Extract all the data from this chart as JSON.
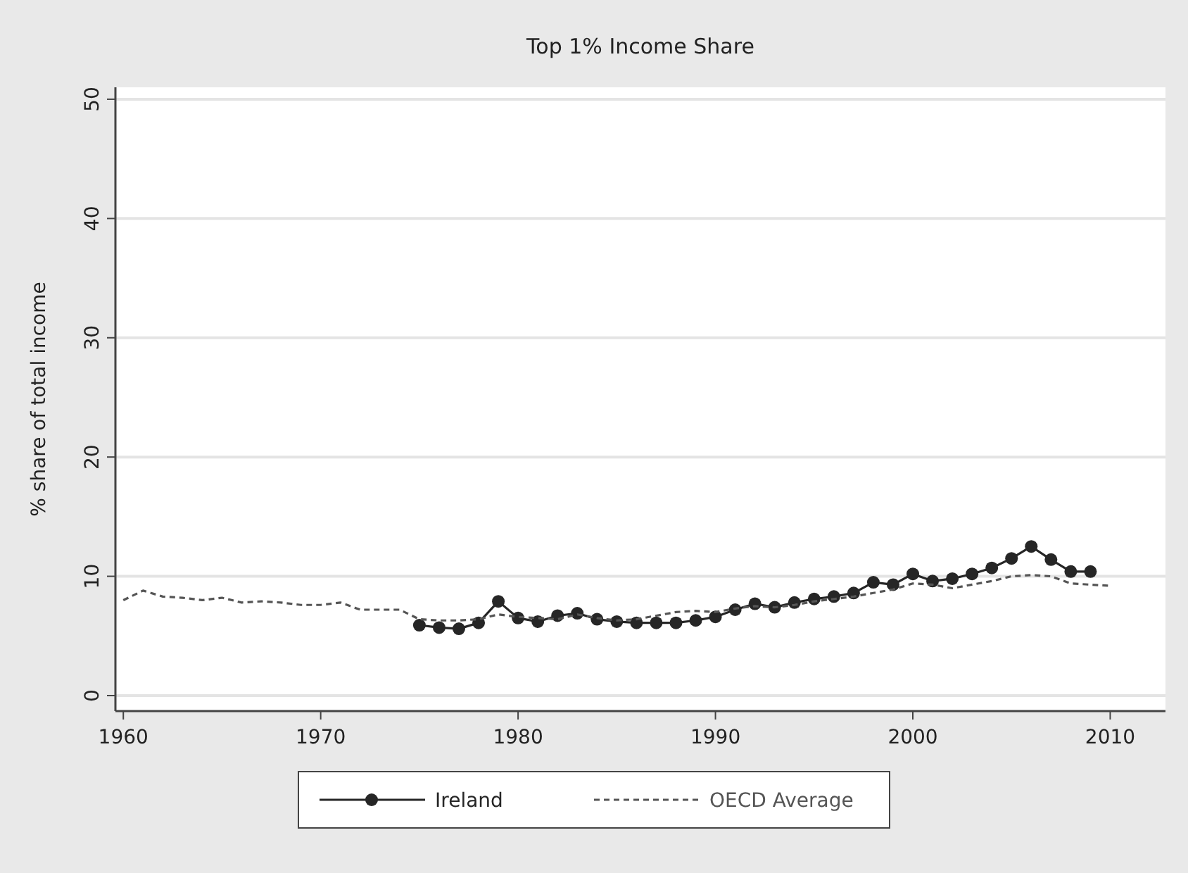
{
  "chart_data": {
    "type": "line",
    "title": "Top 1% Income Share",
    "ylabel": "% share of total income",
    "xlim": [
      1959.6,
      2012.8
    ],
    "xticks": [
      1960,
      1970,
      1980,
      1990,
      2000,
      2010
    ],
    "ylim": [
      -1.3,
      51
    ],
    "yticks": [
      0,
      10,
      20,
      30,
      40,
      50
    ],
    "grid": "y",
    "legend": "bottom",
    "series": [
      {
        "name": "Ireland",
        "color": "#262626",
        "marker": "circle",
        "line_style": "solid",
        "x": [
          1975,
          1976,
          1977,
          1978,
          1979,
          1980,
          1981,
          1982,
          1983,
          1984,
          1985,
          1986,
          1987,
          1988,
          1989,
          1990,
          1991,
          1992,
          1993,
          1994,
          1995,
          1996,
          1997,
          1998,
          1999,
          2000,
          2001,
          2002,
          2003,
          2004,
          2005,
          2006,
          2007,
          2008,
          2009
        ],
        "values": [
          5.9,
          5.7,
          5.6,
          6.1,
          7.9,
          6.5,
          6.2,
          6.7,
          6.9,
          6.4,
          6.2,
          6.1,
          6.1,
          6.1,
          6.3,
          6.6,
          7.2,
          7.7,
          7.4,
          7.8,
          8.1,
          8.3,
          8.6,
          9.5,
          9.3,
          10.2,
          9.6,
          9.8,
          10.2,
          10.7,
          11.5,
          12.5,
          11.4,
          10.4,
          10.4
        ]
      },
      {
        "name": "OECD Average",
        "color": "#555555",
        "marker": "none",
        "line_style": "dashed",
        "x": [
          1960,
          1961,
          1962,
          1963,
          1964,
          1965,
          1966,
          1967,
          1968,
          1969,
          1970,
          1971,
          1972,
          1973,
          1974,
          1975,
          1976,
          1977,
          1978,
          1979,
          1980,
          1981,
          1982,
          1983,
          1984,
          1985,
          1986,
          1987,
          1988,
          1989,
          1990,
          1991,
          1992,
          1993,
          1994,
          1995,
          1996,
          1997,
          1998,
          1999,
          2000,
          2001,
          2002,
          2003,
          2004,
          2005,
          2006,
          2007,
          2008,
          2009,
          2010
        ],
        "values": [
          8.0,
          8.8,
          8.3,
          8.2,
          8.0,
          8.2,
          7.8,
          7.9,
          7.8,
          7.6,
          7.6,
          7.8,
          7.2,
          7.2,
          7.2,
          6.4,
          6.3,
          6.3,
          6.4,
          6.8,
          6.6,
          6.5,
          6.4,
          6.8,
          6.5,
          6.3,
          6.4,
          6.7,
          7.0,
          7.1,
          7.0,
          7.3,
          7.5,
          7.4,
          7.6,
          7.9,
          8.1,
          8.3,
          8.6,
          8.9,
          9.4,
          9.3,
          9.0,
          9.3,
          9.6,
          10.0,
          10.1,
          10.0,
          9.4,
          9.3,
          9.2
        ]
      }
    ]
  }
}
